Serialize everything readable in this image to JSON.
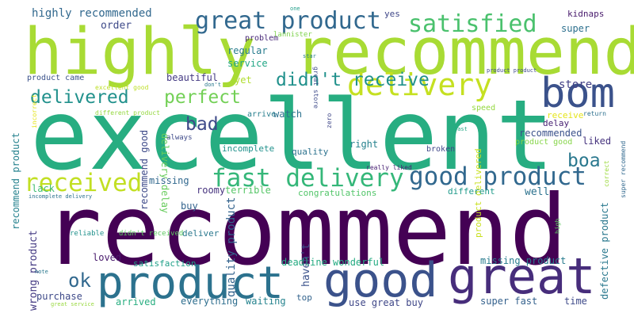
{
  "words": [
    {
      "text": "excellent",
      "color": "#27ad81"
    },
    {
      "text": "recommend",
      "color": "#440154"
    },
    {
      "text": "highly recommend",
      "color": "#a8db34"
    },
    {
      "text": "product",
      "color": "#2c728e"
    },
    {
      "text": "good",
      "color": "#3b528b"
    },
    {
      "text": "great",
      "color": "#472d7b"
    },
    {
      "text": "bom",
      "color": "#3b528b"
    },
    {
      "text": "delivery",
      "color": "#c5e021"
    },
    {
      "text": "great product",
      "color": "#31688e"
    },
    {
      "text": "satisfied",
      "color": "#4ac16d"
    },
    {
      "text": "fast delivery",
      "color": "#35b779"
    },
    {
      "text": "good product",
      "color": "#31688e"
    },
    {
      "text": "received",
      "color": "#c2df23"
    },
    {
      "text": "delivered",
      "color": "#21918c"
    },
    {
      "text": "perfect",
      "color": "#73d056"
    },
    {
      "text": "didn't receive",
      "color": "#21918c"
    },
    {
      "text": "highly recommended",
      "color": "#31688e"
    },
    {
      "text": "bad",
      "color": "#3e4a89"
    },
    {
      "text": "boa",
      "color": "#2a788e"
    },
    {
      "text": "store",
      "color": "#424086"
    },
    {
      "text": "ok",
      "color": "#31688e"
    },
    {
      "text": "recommend good",
      "color": "#3e4a89"
    },
    {
      "text": "recommend product",
      "color": "#26828e"
    },
    {
      "text": "wrong product",
      "color": "#443a83"
    },
    {
      "text": "quality product",
      "color": "#33638d"
    },
    {
      "text": "product delivered",
      "color": "#c8e020"
    },
    {
      "text": "defective product",
      "color": "#2a788e"
    },
    {
      "text": "delivery delay",
      "color": "#67cc5c"
    },
    {
      "text": "order",
      "color": "#3e4a89"
    },
    {
      "text": "regular",
      "color": "#287c8e"
    },
    {
      "text": "service",
      "color": "#21a685"
    },
    {
      "text": "problem",
      "color": "#482878"
    },
    {
      "text": "lannister",
      "color": "#7fd34e"
    },
    {
      "text": "product came",
      "color": "#3b528b"
    },
    {
      "text": "beautiful",
      "color": "#443a83"
    },
    {
      "text": "yet",
      "color": "#b0dd2f"
    },
    {
      "text": "excellent good",
      "color": "#bddf26"
    },
    {
      "text": "different product",
      "color": "#95d840"
    },
    {
      "text": "arrive",
      "color": "#277f8e"
    },
    {
      "text": "watch",
      "color": "#2c728e"
    },
    {
      "text": "speed",
      "color": "#95d840"
    },
    {
      "text": "receive",
      "color": "#e5e419"
    },
    {
      "text": "return",
      "color": "#2d708e"
    },
    {
      "text": "delay",
      "color": "#482173"
    },
    {
      "text": "recommended",
      "color": "#3b528b"
    },
    {
      "text": "liked",
      "color": "#46337e"
    },
    {
      "text": "product good",
      "color": "#86d549"
    },
    {
      "text": "always",
      "color": "#3e4a89"
    },
    {
      "text": "incomplete",
      "color": "#21918c"
    },
    {
      "text": "quality",
      "color": "#2c728e"
    },
    {
      "text": "right",
      "color": "#26828e"
    },
    {
      "text": "broken",
      "color": "#3f4788"
    },
    {
      "text": "really liked",
      "color": "#482173"
    },
    {
      "text": "missing",
      "color": "#31688e"
    },
    {
      "text": "roomy",
      "color": "#46337e"
    },
    {
      "text": "terrible",
      "color": "#56c667"
    },
    {
      "text": "congratulations",
      "color": "#52c569"
    },
    {
      "text": "different",
      "color": "#1f9a8a"
    },
    {
      "text": "well",
      "color": "#2c728e"
    },
    {
      "text": "lack",
      "color": "#40bd72"
    },
    {
      "text": "incomplete delivery",
      "color": "#2c728e"
    },
    {
      "text": "buy",
      "color": "#33638d"
    },
    {
      "text": "reliable",
      "color": "#21918c"
    },
    {
      "text": "didn't received",
      "color": "#5ec962"
    },
    {
      "text": "deliver",
      "color": "#2a788e"
    },
    {
      "text": "loved",
      "color": "#481a6c"
    },
    {
      "text": "satisfaction",
      "color": "#1fa088"
    },
    {
      "text": "deadline wonderful",
      "color": "#25ab82"
    },
    {
      "text": "missing product",
      "color": "#287c8e"
    },
    {
      "text": "purchase",
      "color": "#3e4a89"
    },
    {
      "text": "arrived",
      "color": "#28ae80"
    },
    {
      "text": "everything",
      "color": "#2e6e8e"
    },
    {
      "text": "waiting",
      "color": "#25838e"
    },
    {
      "text": "top",
      "color": "#33638d"
    },
    {
      "text": "use great buy",
      "color": "#3f4788"
    },
    {
      "text": "super fast",
      "color": "#34618d"
    },
    {
      "text": "time",
      "color": "#3e4a89"
    },
    {
      "text": "great service",
      "color": "#98d83e"
    },
    {
      "text": "yes",
      "color": "#3f4788"
    },
    {
      "text": "kidnaps",
      "color": "#481a6c"
    },
    {
      "text": "super",
      "color": "#2d708e"
    },
    {
      "text": "one",
      "color": "#1f9e89"
    },
    {
      "text": "star",
      "color": "#277f8e"
    },
    {
      "text": "great store",
      "color": "#3e4a89"
    },
    {
      "text": "zero",
      "color": "#3f4788"
    },
    {
      "text": "correct",
      "color": "#9bd93c"
    },
    {
      "text": "super recommend",
      "color": "#31688e"
    },
    {
      "text": "fast",
      "color": "#22a884"
    },
    {
      "text": "note",
      "color": "#2a788e"
    },
    {
      "text": "haven't",
      "color": "#3b528b"
    },
    {
      "text": "product product",
      "color": "#3e4a89"
    },
    {
      "text": "incorrect",
      "color": "#e5e419"
    },
    {
      "text": "don't",
      "color": "#2a788e"
    },
    {
      "text": "high",
      "color": "#5ec962"
    }
  ]
}
